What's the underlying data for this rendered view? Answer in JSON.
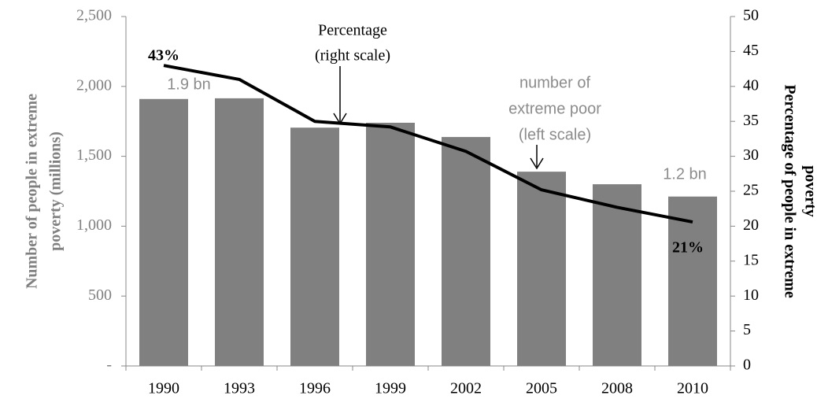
{
  "chart_data": {
    "type": "bar",
    "categories": [
      "1990",
      "1993",
      "1996",
      "1999",
      "2002",
      "2005",
      "2008",
      "2010"
    ],
    "series": [
      {
        "type": "bar",
        "color": "#808080",
        "axis": "y",
        "values": [
          1910,
          1915,
          1705,
          1740,
          1638,
          1390,
          1300,
          1212
        ]
      },
      {
        "type": "line",
        "color": "#000000",
        "axis": "y2",
        "values": [
          43,
          41,
          35,
          34.2,
          30.7,
          25.2,
          22.7,
          20.6
        ]
      }
    ],
    "ylim": [
      0,
      2500
    ],
    "yticks": [
      {
        "value": 0,
        "label": "-"
      },
      500,
      {
        "value": 1000,
        "label": "1,000"
      },
      {
        "value": 1500,
        "label": "1,500"
      },
      {
        "value": 2000,
        "label": "2,000"
      },
      {
        "value": 2500,
        "label": "2,500"
      }
    ],
    "y2lim": [
      0,
      50
    ],
    "y2ticks": [
      0,
      5,
      10,
      15,
      20,
      25,
      30,
      35,
      40,
      45,
      50
    ],
    "y_label": [
      "Number of people in extreme",
      "poverty (millions)"
    ],
    "y2_label": [
      "Percentage of people in extreme",
      "poverty"
    ],
    "annotations": [
      {
        "text": [
          "43%"
        ]
      },
      {
        "text": [
          "1.9 bn"
        ]
      },
      {
        "text": [
          "Percentage",
          "(right scale)"
        ]
      },
      {
        "text": [
          "number of",
          "extreme poor",
          "(left scale)"
        ]
      },
      {
        "text": [
          "1.2 bn"
        ]
      },
      {
        "text": [
          "21%"
        ]
      }
    ]
  }
}
